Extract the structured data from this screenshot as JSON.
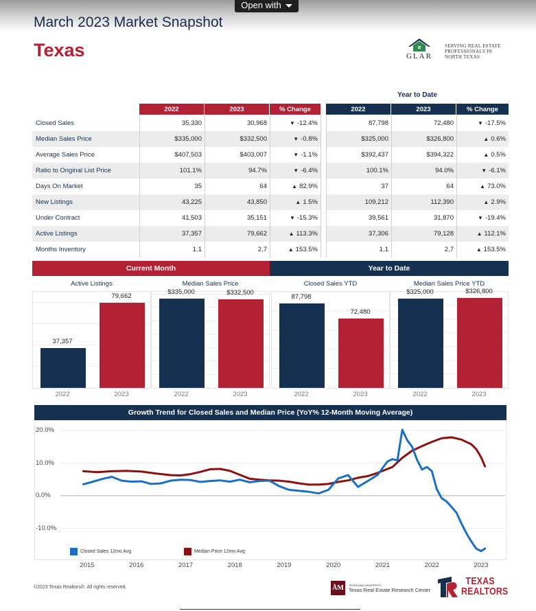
{
  "viewer": {
    "open_with_label": "Open with"
  },
  "header": {
    "title": "March 2023 Market Snapshot",
    "region": "Texas"
  },
  "logo_glar": {
    "letters": "GLAR",
    "tagline_1": "Serving Real Estate",
    "tagline_2": "Professionals in",
    "tagline_3": "North Texas"
  },
  "table": {
    "ytd_heading": "Year to Date",
    "current_headers": [
      "2022",
      "2023",
      "% Change"
    ],
    "ytd_headers": [
      "2022",
      "2023",
      "% Change"
    ],
    "rows": [
      {
        "label": "Closed Sales",
        "cm2022": "35,330",
        "cm2023": "30,968",
        "cmChg": "-12.4%",
        "cmDir": "down",
        "y2022": "87,798",
        "y2023": "72,480",
        "yChg": "-17.5%",
        "yDir": "down"
      },
      {
        "label": "Median Sales Price",
        "cm2022": "$335,000",
        "cm2023": "$332,500",
        "cmChg": "-0.8%",
        "cmDir": "down",
        "y2022": "$325,000",
        "y2023": "$326,800",
        "yChg": "0.6%",
        "yDir": "up"
      },
      {
        "label": "Average Sales Price",
        "cm2022": "$407,503",
        "cm2023": "$403,007",
        "cmChg": "-1.1%",
        "cmDir": "down",
        "y2022": "$392,437",
        "y2023": "$394,322",
        "yChg": "0.5%",
        "yDir": "up"
      },
      {
        "label": "Ratio to Original List Price",
        "cm2022": "101.1%",
        "cm2023": "94.7%",
        "cmChg": "-6.4%",
        "cmDir": "down",
        "y2022": "100.1%",
        "y2023": "94.0%",
        "yChg": "-6.1%",
        "yDir": "down"
      },
      {
        "label": "Days On Market",
        "cm2022": "35",
        "cm2023": "64",
        "cmChg": "82.9%",
        "cmDir": "up",
        "y2022": "37",
        "y2023": "64",
        "yChg": "73.0%",
        "yDir": "up"
      },
      {
        "label": "New Listings",
        "cm2022": "43,225",
        "cm2023": "43,850",
        "cmChg": "1.5%",
        "cmDir": "up",
        "y2022": "109,212",
        "y2023": "112,390",
        "yChg": "2.9%",
        "yDir": "up"
      },
      {
        "label": "Under Contract",
        "cm2022": "41,503",
        "cm2023": "35,151",
        "cmChg": "-15.3%",
        "cmDir": "down",
        "y2022": "39,561",
        "y2023": "31,870",
        "yChg": "-19.4%",
        "yDir": "down"
      },
      {
        "label": "Active Listings",
        "cm2022": "37,357",
        "cm2023": "79,662",
        "cmChg": "113.3%",
        "cmDir": "up",
        "y2022": "37,306",
        "y2023": "79,128",
        "yChg": "112.1%",
        "yDir": "up"
      },
      {
        "label": "Months Inventory",
        "cm2022": "1.1",
        "cm2023": "2.7",
        "cmChg": "153.5%",
        "cmDir": "up",
        "y2022": "1.1",
        "y2023": "2.7",
        "yChg": "153.5%",
        "yDir": "up"
      }
    ]
  },
  "bands": {
    "current_month": "Current Month",
    "year_to_date": "Year to Date"
  },
  "colors": {
    "red": "#b22234",
    "navy": "#16304f",
    "closed_line": "#1a6fc4",
    "price_line": "#8b1010"
  },
  "chart_data": [
    {
      "type": "bar",
      "title": "Active Listings",
      "categories": [
        "2022",
        "2023"
      ],
      "values": [
        37357,
        79662
      ],
      "labels": [
        "37,357",
        "79,662"
      ]
    },
    {
      "type": "bar",
      "title": "Median Sales Price",
      "categories": [
        "2022",
        "2023"
      ],
      "values": [
        335000,
        332500
      ],
      "labels": [
        "$335,000",
        "$332,500"
      ]
    },
    {
      "type": "bar",
      "title": "Closed Sales YTD",
      "categories": [
        "2022",
        "2023"
      ],
      "values": [
        87798,
        72480
      ],
      "labels": [
        "87,798",
        "72,480"
      ]
    },
    {
      "type": "bar",
      "title": "Median Sales Price YTD",
      "categories": [
        "2022",
        "2023"
      ],
      "values": [
        325000,
        326800
      ],
      "labels": [
        "$325,000",
        "$326,800"
      ]
    },
    {
      "type": "line",
      "title": "Growth Trend for Closed Sales and Median Price (YoY% 12-Month Moving Average)",
      "y_ticks": [
        "20.0%",
        "10.0%",
        "0.0%",
        "-10.0%"
      ],
      "ylim": [
        -19,
        21
      ],
      "x_ticks": [
        "2015",
        "2016",
        "2017",
        "2018",
        "2019",
        "2020",
        "2021",
        "2022",
        "2023"
      ],
      "xlim": [
        2015.0,
        2023.25
      ],
      "series": [
        {
          "name": "Closed Sales 12mo Avg",
          "x": [
            2014.92,
            2015.1,
            2015.3,
            2015.5,
            2015.7,
            2015.9,
            2016.1,
            2016.3,
            2016.5,
            2016.7,
            2016.9,
            2017.1,
            2017.3,
            2017.5,
            2017.7,
            2017.9,
            2018.1,
            2018.3,
            2018.5,
            2018.7,
            2018.9,
            2019.1,
            2019.3,
            2019.5,
            2019.7,
            2019.9,
            2020.1,
            2020.3,
            2020.5,
            2020.7,
            2020.9,
            2021.0,
            2021.1,
            2021.2,
            2021.3,
            2021.4,
            2021.5,
            2021.6,
            2021.7,
            2021.8,
            2021.9,
            2022.0,
            2022.1,
            2022.2,
            2022.3,
            2022.4,
            2022.5,
            2022.6,
            2022.7,
            2022.8,
            2022.9,
            2023.0,
            2023.08
          ],
          "values": [
            3.5,
            4.2,
            5.1,
            5.8,
            4.6,
            4.3,
            4.4,
            3.6,
            3.8,
            4.6,
            4.9,
            4.8,
            4.2,
            4.5,
            4.7,
            4.3,
            4.9,
            4.1,
            4.5,
            4.6,
            2.9,
            1.8,
            1.5,
            1.2,
            0.7,
            1.8,
            5.3,
            6.3,
            2.7,
            4.5,
            6.4,
            8.5,
            10.5,
            11.2,
            10.8,
            20.2,
            17.0,
            15.0,
            11.0,
            8.0,
            8.8,
            7.5,
            2.0,
            -0.8,
            -1.8,
            -3.5,
            -5.2,
            -8.5,
            -11.5,
            -14.0,
            -16.2,
            -17.0,
            -16.2
          ]
        },
        {
          "name": "Median Price 12mo Avg",
          "x": [
            2014.92,
            2015.2,
            2015.5,
            2015.8,
            2016.1,
            2016.4,
            2016.7,
            2016.9,
            2017.1,
            2017.3,
            2017.5,
            2017.7,
            2017.9,
            2018.1,
            2018.3,
            2018.5,
            2018.7,
            2018.9,
            2019.1,
            2019.3,
            2019.5,
            2019.7,
            2019.9,
            2020.1,
            2020.3,
            2020.5,
            2020.7,
            2020.9,
            2021.0,
            2021.2,
            2021.4,
            2021.6,
            2021.8,
            2022.0,
            2022.2,
            2022.4,
            2022.6,
            2022.8,
            2022.9,
            2023.0,
            2023.08
          ],
          "values": [
            7.5,
            7.2,
            7.5,
            7.6,
            7.4,
            6.8,
            6.3,
            6.2,
            6.6,
            7.3,
            8.1,
            8.2,
            7.6,
            6.4,
            5.2,
            4.9,
            4.7,
            4.6,
            4.3,
            3.8,
            3.4,
            3.4,
            3.6,
            4.2,
            4.7,
            5.5,
            6.0,
            7.0,
            7.6,
            8.8,
            11.6,
            13.8,
            15.2,
            16.5,
            17.6,
            17.9,
            17.2,
            15.8,
            14.3,
            11.8,
            9.0
          ]
        }
      ]
    }
  ],
  "footer": {
    "copyright": "©2023 Texas Realtors®. All rights reserved.",
    "tamu_small": "TEXAS A&M UNIVERSITY",
    "tamu_center": "Texas Real Estate Research Center",
    "texas_realtors_1": "TEXAS",
    "texas_realtors_2": "REALTORS"
  }
}
